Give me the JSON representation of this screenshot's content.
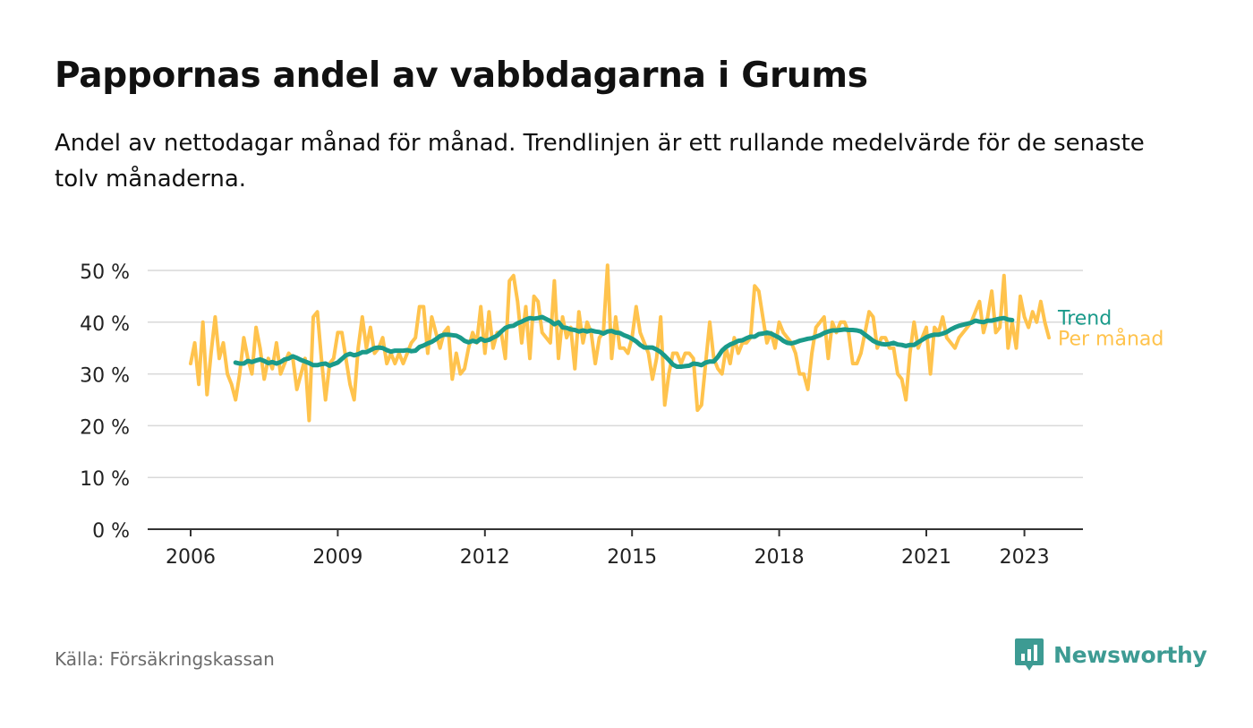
{
  "header": {
    "title": "Pappornas andel av vabbdagarna i Grums",
    "subtitle": "Andel av nettodagar månad för månad. Trendlinjen är ett rullande medelvärde för de senaste tolv månaderna."
  },
  "footer": {
    "source": "Källa: Försäkringskassan",
    "brand": "Newsworthy",
    "brand_icon": "newsworthy-logo-icon",
    "brand_color": "#3d9b93"
  },
  "chart_data": {
    "type": "line",
    "x_start": "2006-01",
    "x_interval": "month",
    "ylim": [
      0,
      50
    ],
    "y_ticks": [
      0,
      10,
      20,
      30,
      40,
      50
    ],
    "y_tick_labels": [
      "0 %",
      "10 %",
      "20 %",
      "30 %",
      "40 %",
      "50 %"
    ],
    "x_ticks": [
      2006,
      2009,
      2012,
      2015,
      2018,
      2021,
      2023
    ],
    "x_tick_labels": [
      "2006",
      "2009",
      "2012",
      "2015",
      "2018",
      "2021",
      "2023"
    ],
    "grid": true,
    "legend": "direct labels at line ends (right)",
    "series": [
      {
        "name": "Per månad",
        "color": "#ffc34d",
        "values": [
          32,
          36,
          28,
          40,
          26,
          34,
          41,
          33,
          36,
          30,
          28,
          25,
          30,
          37,
          33,
          30,
          39,
          35,
          29,
          33,
          31,
          36,
          30,
          32,
          34,
          33,
          27,
          30,
          33,
          21,
          41,
          42,
          33,
          25,
          32,
          33,
          38,
          38,
          33,
          28,
          25,
          35,
          41,
          35,
          39,
          34,
          35,
          37,
          32,
          34,
          32,
          34,
          32,
          34,
          36,
          37,
          43,
          43,
          34,
          41,
          38,
          35,
          38,
          39,
          29,
          34,
          30,
          31,
          35,
          38,
          36,
          43,
          34,
          42,
          35,
          38,
          38,
          33,
          48,
          49,
          44,
          36,
          43,
          33,
          45,
          44,
          38,
          37,
          36,
          48,
          33,
          41,
          37,
          39,
          31,
          42,
          36,
          40,
          38,
          32,
          37,
          38,
          51,
          33,
          41,
          35,
          35,
          34,
          37,
          43,
          38,
          36,
          34,
          29,
          33,
          41,
          24,
          30,
          34,
          34,
          32,
          34,
          34,
          33,
          23,
          24,
          32,
          40,
          33,
          31,
          30,
          35,
          32,
          37,
          34,
          36,
          36,
          37,
          47,
          46,
          41,
          36,
          38,
          35,
          40,
          38,
          37,
          36,
          34,
          30,
          30,
          27,
          34,
          39,
          40,
          41,
          33,
          40,
          38,
          40,
          40,
          38,
          32,
          32,
          34,
          38,
          42,
          41,
          35,
          37,
          37,
          35,
          35,
          30,
          29,
          25,
          34,
          40,
          35,
          37,
          39,
          30,
          39,
          38,
          41,
          37,
          36,
          35,
          37,
          38,
          39,
          40,
          42,
          44,
          38,
          41,
          46,
          38,
          39,
          49,
          35,
          40,
          35,
          45,
          41,
          39,
          42,
          40,
          44,
          40,
          37
        ]
      },
      {
        "name": "Trend",
        "color": "#1a9a8a",
        "start": "2006-12",
        "values": [
          32.2,
          32.0,
          32.0,
          32.5,
          32.3,
          32.6,
          32.8,
          32.5,
          32.1,
          32.3,
          32.0,
          32.3,
          32.8,
          33.0,
          33.4,
          33.1,
          32.7,
          32.4,
          32.1,
          31.7,
          31.7,
          31.9,
          32.0,
          31.6,
          31.9,
          32.2,
          32.9,
          33.6,
          33.9,
          33.6,
          33.8,
          34.2,
          34.2,
          34.6,
          35.0,
          35.1,
          35.0,
          34.6,
          34.3,
          34.5,
          34.5,
          34.5,
          34.6,
          34.4,
          34.5,
          35.2,
          35.5,
          35.9,
          36.2,
          36.7,
          37.3,
          37.6,
          37.6,
          37.5,
          37.4,
          37.0,
          36.4,
          36.1,
          36.4,
          36.2,
          36.8,
          36.4,
          36.6,
          37.0,
          37.4,
          38.2,
          38.9,
          39.2,
          39.3,
          39.8,
          40.1,
          40.5,
          40.8,
          40.7,
          40.8,
          41.0,
          40.6,
          40.2,
          39.6,
          40.0,
          39.0,
          38.9,
          38.6,
          38.5,
          38.2,
          38.4,
          38.2,
          38.4,
          38.2,
          38.1,
          37.8,
          38.2,
          38.3,
          38.0,
          37.9,
          37.5,
          37.2,
          36.8,
          36.3,
          35.6,
          35.1,
          35.1,
          35.1,
          34.7,
          34.2,
          33.5,
          32.7,
          31.8,
          31.4,
          31.4,
          31.5,
          31.6,
          32.0,
          31.9,
          31.7,
          32.2,
          32.4,
          32.4,
          33.3,
          34.5,
          35.2,
          35.7,
          36.0,
          36.4,
          36.5,
          36.9,
          37.2,
          37.2,
          37.7,
          37.8,
          38.0,
          37.8,
          37.4,
          37.0,
          36.4,
          36.0,
          35.9,
          36.1,
          36.4,
          36.6,
          36.8,
          36.9,
          37.2,
          37.5,
          37.9,
          38.2,
          38.4,
          38.4,
          38.5,
          38.6,
          38.5,
          38.5,
          38.4,
          38.2,
          37.6,
          37.0,
          36.4,
          36.0,
          35.8,
          35.7,
          35.8,
          36.0,
          35.7,
          35.6,
          35.4,
          35.6,
          35.6,
          36.1,
          36.6,
          37.1,
          37.4,
          37.6,
          37.6,
          37.8,
          38.1,
          38.6,
          39.0,
          39.3,
          39.5,
          39.7,
          39.9,
          40.3,
          40.1,
          40.0,
          40.3,
          40.3,
          40.5,
          40.7,
          40.8,
          40.5,
          40.4
        ]
      }
    ]
  }
}
